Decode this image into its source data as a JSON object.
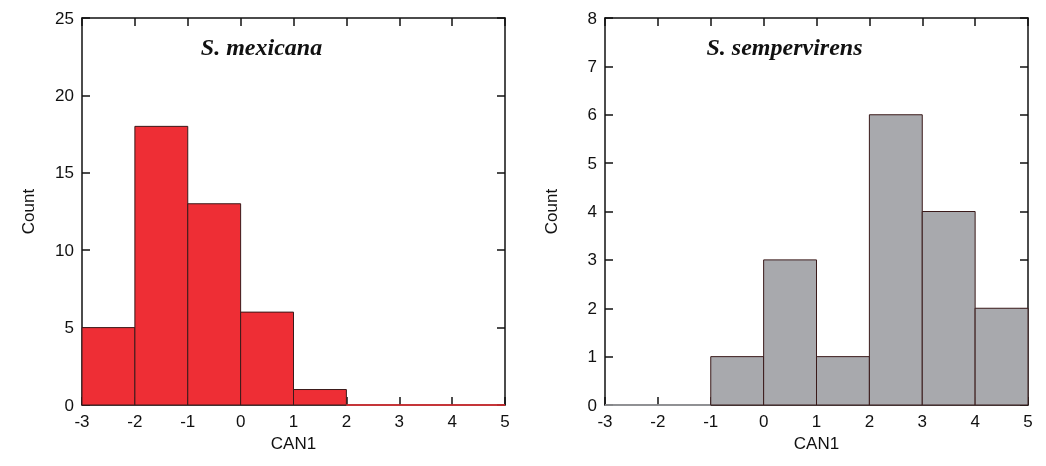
{
  "chart_data": [
    {
      "type": "histogram",
      "title": "S. mexicana",
      "xlabel": "CAN1",
      "ylabel": "Count",
      "bins": [
        -3,
        -2,
        -1,
        0,
        1,
        2,
        3,
        4,
        5
      ],
      "values": [
        5,
        18,
        13,
        6,
        1,
        0,
        0,
        0
      ],
      "color": "#ee2e35",
      "xlim": [
        -3,
        5
      ],
      "xticks": [
        -3,
        -2,
        -1,
        0,
        1,
        2,
        3,
        4,
        5
      ],
      "ylim": [
        0,
        25
      ],
      "yticks": [
        0,
        5,
        10,
        15,
        20,
        25
      ],
      "grid": false
    },
    {
      "type": "histogram",
      "title": "S. sempervirens",
      "xlabel": "CAN1",
      "ylabel": "Count",
      "bins": [
        -3,
        -2,
        -1,
        0,
        1,
        2,
        3,
        4,
        5
      ],
      "values": [
        0,
        0,
        1,
        3,
        1,
        6,
        4,
        2
      ],
      "color": "#a8a9ad",
      "xlim": [
        -3,
        5
      ],
      "xticks": [
        -3,
        -2,
        -1,
        0,
        1,
        2,
        3,
        4,
        5
      ],
      "ylim": [
        0,
        8
      ],
      "yticks": [
        0,
        1,
        2,
        3,
        4,
        5,
        6,
        7,
        8
      ],
      "grid": false
    }
  ]
}
